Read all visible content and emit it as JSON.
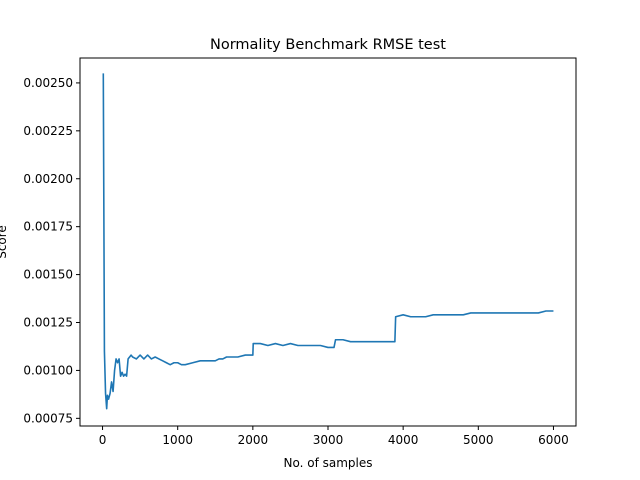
{
  "chart_data": {
    "type": "line",
    "title": "Normality Benchmark RMSE test",
    "xlabel": "No. of samples",
    "ylabel": "Score",
    "xlim": [
      -300,
      6300
    ],
    "ylim": [
      0.00071,
      0.00263
    ],
    "xticks": [
      0,
      1000,
      2000,
      3000,
      4000,
      5000,
      6000
    ],
    "xtick_labels": [
      "0",
      "1000",
      "2000",
      "3000",
      "4000",
      "5000",
      "6000"
    ],
    "yticks": [
      0.00075,
      0.001,
      0.00125,
      0.0015,
      0.00175,
      0.002,
      0.00225,
      0.0025
    ],
    "ytick_labels": [
      "0.00075",
      "0.00100",
      "0.00125",
      "0.00150",
      "0.00175",
      "0.00200",
      "0.00225",
      "0.00250"
    ],
    "grid": false,
    "line_color": "#1f77b4",
    "series": [
      {
        "x": [
          10,
          25,
          40,
          55,
          65,
          80,
          100,
          120,
          140,
          160,
          180,
          200,
          220,
          240,
          260,
          280,
          300,
          320,
          340,
          360,
          380,
          400,
          450,
          500,
          550,
          600,
          650,
          700,
          750,
          800,
          850,
          900,
          950,
          1000,
          1050,
          1100,
          1200,
          1300,
          1400,
          1500,
          1550,
          1600,
          1650,
          1700,
          1800,
          1900,
          2000,
          2005,
          2100,
          2200,
          2300,
          2400,
          2500,
          2600,
          2700,
          2800,
          2900,
          3000,
          3050,
          3080,
          3100,
          3200,
          3300,
          3400,
          3500,
          3600,
          3700,
          3800,
          3890,
          3900,
          4000,
          4100,
          4200,
          4300,
          4400,
          4500,
          4600,
          4700,
          4800,
          4900,
          5000,
          5100,
          5200,
          5300,
          5400,
          5500,
          5600,
          5700,
          5800,
          5900,
          6000
        ],
        "y": [
          0.00255,
          0.0011,
          0.00088,
          0.0008,
          0.00087,
          0.00085,
          0.00088,
          0.00094,
          0.00089,
          0.001,
          0.00106,
          0.00104,
          0.00106,
          0.00097,
          0.00099,
          0.00097,
          0.00098,
          0.00097,
          0.00106,
          0.00107,
          0.00108,
          0.00107,
          0.00106,
          0.00108,
          0.00106,
          0.00108,
          0.00106,
          0.00107,
          0.00106,
          0.00105,
          0.00104,
          0.00103,
          0.00104,
          0.00104,
          0.00103,
          0.00103,
          0.00104,
          0.00105,
          0.00105,
          0.00105,
          0.00106,
          0.00106,
          0.00107,
          0.00107,
          0.00107,
          0.00108,
          0.00108,
          0.00114,
          0.00114,
          0.00113,
          0.00114,
          0.00113,
          0.00114,
          0.00113,
          0.00113,
          0.00113,
          0.00113,
          0.00112,
          0.00112,
          0.00112,
          0.00116,
          0.00116,
          0.00115,
          0.00115,
          0.00115,
          0.00115,
          0.00115,
          0.00115,
          0.00115,
          0.00128,
          0.00129,
          0.00128,
          0.00128,
          0.00128,
          0.00129,
          0.00129,
          0.00129,
          0.00129,
          0.00129,
          0.0013,
          0.0013,
          0.0013,
          0.0013,
          0.0013,
          0.0013,
          0.0013,
          0.0013,
          0.0013,
          0.0013,
          0.00131,
          0.00131
        ]
      }
    ]
  }
}
